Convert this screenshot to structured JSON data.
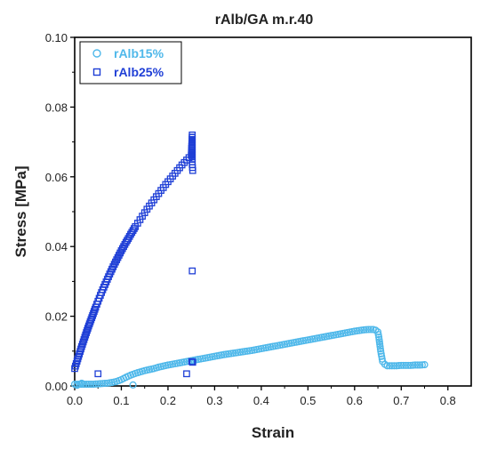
{
  "chart_data": {
    "type": "scatter",
    "title": "rAlb/GA m.r.40",
    "xlabel": "Strain",
    "ylabel": "Stress [MPa]",
    "xlim": [
      0.0,
      0.85
    ],
    "ylim": [
      0.0,
      0.1
    ],
    "xticks": [
      "0.0",
      "0.1",
      "0.2",
      "0.3",
      "0.4",
      "0.5",
      "0.6",
      "0.7",
      "0.8"
    ],
    "yticks": [
      "0.00",
      "0.02",
      "0.04",
      "0.06",
      "0.08",
      "0.10"
    ],
    "grid": false,
    "legend_position": "top-left",
    "series": [
      {
        "name": "rAlb15%",
        "marker": "circle",
        "color": "#4fb8ea",
        "x": [
          0.0,
          0.01,
          0.02,
          0.03,
          0.04,
          0.05,
          0.06,
          0.07,
          0.08,
          0.09,
          0.1,
          0.11,
          0.12,
          0.13,
          0.14,
          0.15,
          0.16,
          0.17,
          0.18,
          0.2,
          0.22,
          0.24,
          0.26,
          0.28,
          0.3,
          0.32,
          0.34,
          0.36,
          0.38,
          0.4,
          0.42,
          0.44,
          0.46,
          0.48,
          0.5,
          0.52,
          0.54,
          0.56,
          0.58,
          0.6,
          0.62,
          0.63,
          0.64,
          0.645,
          0.65,
          0.652,
          0.654,
          0.656,
          0.658,
          0.66,
          0.665,
          0.67,
          0.68,
          0.69,
          0.7,
          0.71,
          0.72,
          0.73,
          0.74,
          0.75,
          0.125,
          0.005,
          0.015
        ],
        "y": [
          0.0005,
          0.0005,
          0.0005,
          0.0005,
          0.0005,
          0.0006,
          0.0007,
          0.0008,
          0.001,
          0.0013,
          0.0018,
          0.0025,
          0.0031,
          0.0036,
          0.004,
          0.0044,
          0.0047,
          0.005,
          0.0054,
          0.006,
          0.0065,
          0.007,
          0.0075,
          0.008,
          0.0085,
          0.009,
          0.0094,
          0.0098,
          0.0102,
          0.0107,
          0.0112,
          0.0117,
          0.0122,
          0.0127,
          0.0132,
          0.0137,
          0.0142,
          0.0147,
          0.0152,
          0.0157,
          0.0161,
          0.0162,
          0.0162,
          0.016,
          0.0155,
          0.014,
          0.012,
          0.01,
          0.0085,
          0.007,
          0.0062,
          0.0058,
          0.0058,
          0.0058,
          0.0059,
          0.0059,
          0.0059,
          0.006,
          0.006,
          0.0061,
          0.0003,
          0.0002,
          0.0008
        ]
      },
      {
        "name": "rAlb25%",
        "marker": "square",
        "color": "#1f3fd6",
        "x": [
          0.0,
          0.005,
          0.01,
          0.015,
          0.02,
          0.025,
          0.03,
          0.035,
          0.04,
          0.045,
          0.05,
          0.055,
          0.06,
          0.065,
          0.07,
          0.075,
          0.08,
          0.085,
          0.09,
          0.095,
          0.1,
          0.105,
          0.11,
          0.115,
          0.12,
          0.125,
          0.13,
          0.135,
          0.14,
          0.145,
          0.15,
          0.155,
          0.16,
          0.165,
          0.17,
          0.175,
          0.18,
          0.185,
          0.19,
          0.195,
          0.2,
          0.205,
          0.21,
          0.215,
          0.22,
          0.225,
          0.23,
          0.235,
          0.24,
          0.245,
          0.25,
          0.252,
          0.252,
          0.252,
          0.253,
          0.252,
          0.253,
          0.251,
          0.05,
          0.24
        ],
        "y": [
          0.005,
          0.0071,
          0.0092,
          0.0113,
          0.0133,
          0.0153,
          0.0172,
          0.019,
          0.0208,
          0.0226,
          0.0243,
          0.026,
          0.0276,
          0.0291,
          0.0306,
          0.0321,
          0.0335,
          0.0349,
          0.0362,
          0.0375,
          0.0388,
          0.04,
          0.0412,
          0.0423,
          0.0435,
          0.0446,
          0.0457,
          0.0467,
          0.0477,
          0.0487,
          0.0497,
          0.0507,
          0.0516,
          0.0525,
          0.0534,
          0.0543,
          0.0552,
          0.0561,
          0.0569,
          0.0578,
          0.0586,
          0.0594,
          0.0602,
          0.061,
          0.0618,
          0.0626,
          0.0634,
          0.0641,
          0.0648,
          0.0655,
          0.0662,
          0.072,
          0.065,
          0.0635,
          0.0618,
          0.033,
          0.0068,
          0.007,
          0.0035,
          0.0035
        ]
      }
    ]
  }
}
